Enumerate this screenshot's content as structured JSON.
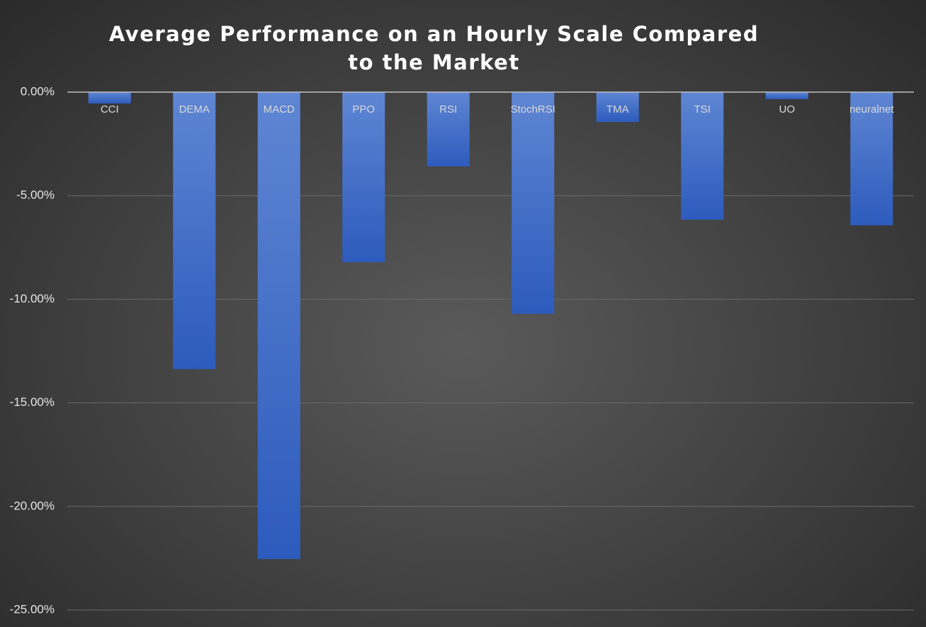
{
  "chart_data": {
    "type": "bar",
    "title": "Average Performance on an Hourly Scale Compared to the Market",
    "categories": [
      "CCI",
      "DEMA",
      "MACD",
      "PPO",
      "RSI",
      "StochRSI",
      "TMA",
      "TSI",
      "UO",
      "neuralnet"
    ],
    "values": [
      -0.55,
      -13.37,
      -22.54,
      -8.21,
      -3.59,
      -10.7,
      -1.44,
      -6.16,
      -0.34,
      -6.43
    ],
    "color": "#3f6ccb",
    "ylim": [
      -25,
      0
    ],
    "yticks": [
      {
        "value": 0,
        "label": "0.00%"
      },
      {
        "value": -5,
        "label": "-5.00%"
      },
      {
        "value": -10,
        "label": "-10.00%"
      },
      {
        "value": -15,
        "label": "-15.00%"
      },
      {
        "value": -20,
        "label": "-20.00%"
      },
      {
        "value": -25,
        "label": "-25.00%"
      }
    ],
    "grid": true
  }
}
